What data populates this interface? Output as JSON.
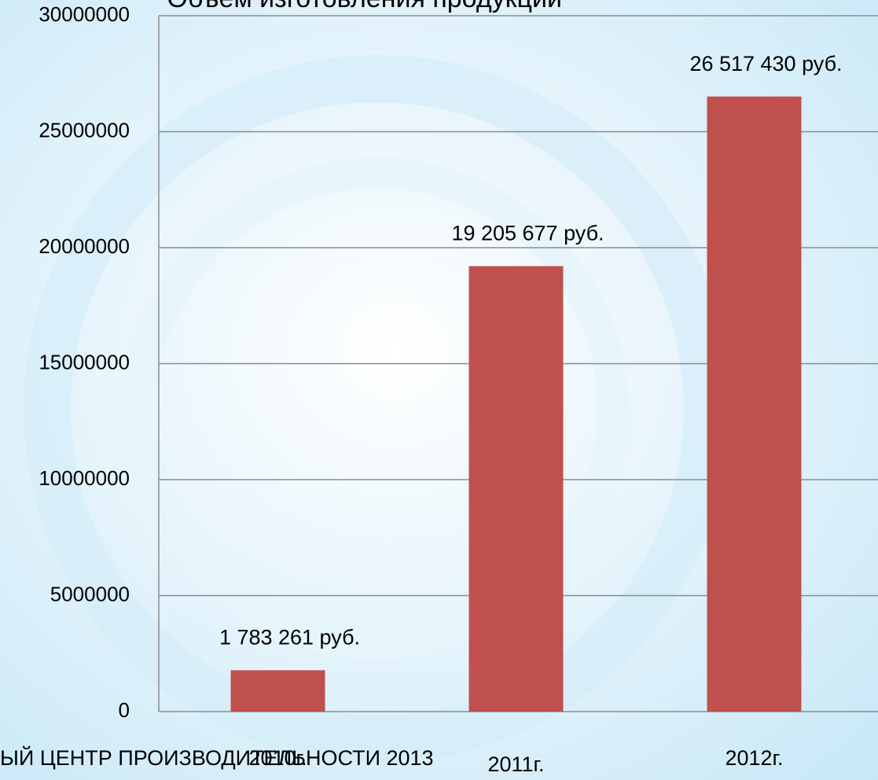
{
  "chart_data": {
    "type": "bar",
    "title": "Объем изготовления продукции",
    "footer": "ЫЙ ЦЕНТР ПРОИЗВОДИТЕЛЬНОСТИ 2013",
    "categories": [
      "2010г.",
      "2011г.",
      "2012г."
    ],
    "values": [
      1783261,
      19205677,
      26517430
    ],
    "value_labels": [
      "1 783 261 руб.",
      "19 205 677 руб.",
      "26 517 430 руб."
    ],
    "color": "#c0504d",
    "ylim": [
      0,
      30000000
    ],
    "yticks": [
      0,
      5000000,
      10000000,
      15000000,
      20000000,
      25000000,
      30000000
    ],
    "grid": true
  }
}
